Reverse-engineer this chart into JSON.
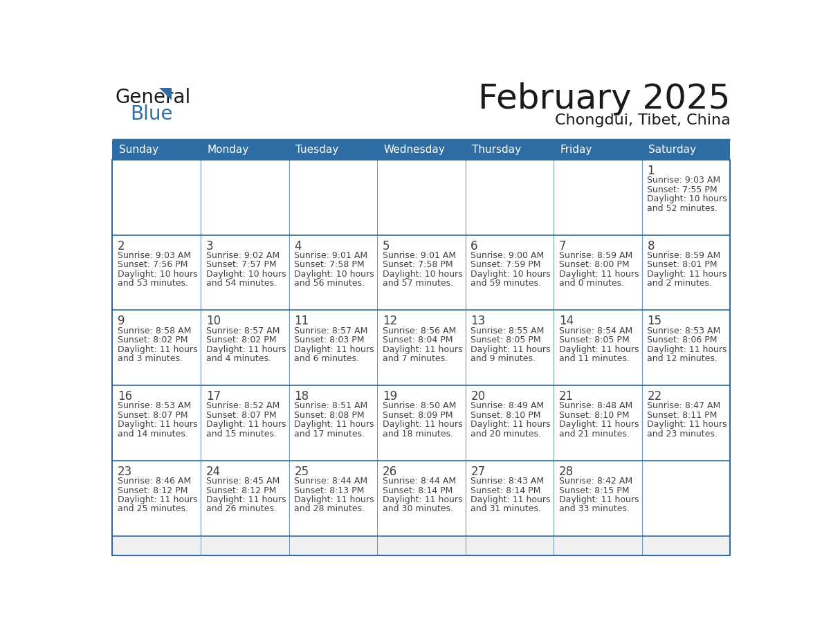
{
  "title": "February 2025",
  "subtitle": "Chongdui, Tibet, China",
  "header_bg": "#2E6DA4",
  "header_text_color": "#FFFFFF",
  "cell_bg": "#FFFFFF",
  "border_color": "#2E6DA4",
  "text_color": "#404040",
  "day_headers": [
    "Sunday",
    "Monday",
    "Tuesday",
    "Wednesday",
    "Thursday",
    "Friday",
    "Saturday"
  ],
  "days": [
    {
      "day": 1,
      "col": 6,
      "row": 0,
      "sunrise": "9:03 AM",
      "sunset": "7:55 PM",
      "daylight_line1": "Daylight: 10 hours",
      "daylight_line2": "and 52 minutes."
    },
    {
      "day": 2,
      "col": 0,
      "row": 1,
      "sunrise": "9:03 AM",
      "sunset": "7:56 PM",
      "daylight_line1": "Daylight: 10 hours",
      "daylight_line2": "and 53 minutes."
    },
    {
      "day": 3,
      "col": 1,
      "row": 1,
      "sunrise": "9:02 AM",
      "sunset": "7:57 PM",
      "daylight_line1": "Daylight: 10 hours",
      "daylight_line2": "and 54 minutes."
    },
    {
      "day": 4,
      "col": 2,
      "row": 1,
      "sunrise": "9:01 AM",
      "sunset": "7:58 PM",
      "daylight_line1": "Daylight: 10 hours",
      "daylight_line2": "and 56 minutes."
    },
    {
      "day": 5,
      "col": 3,
      "row": 1,
      "sunrise": "9:01 AM",
      "sunset": "7:58 PM",
      "daylight_line1": "Daylight: 10 hours",
      "daylight_line2": "and 57 minutes."
    },
    {
      "day": 6,
      "col": 4,
      "row": 1,
      "sunrise": "9:00 AM",
      "sunset": "7:59 PM",
      "daylight_line1": "Daylight: 10 hours",
      "daylight_line2": "and 59 minutes."
    },
    {
      "day": 7,
      "col": 5,
      "row": 1,
      "sunrise": "8:59 AM",
      "sunset": "8:00 PM",
      "daylight_line1": "Daylight: 11 hours",
      "daylight_line2": "and 0 minutes."
    },
    {
      "day": 8,
      "col": 6,
      "row": 1,
      "sunrise": "8:59 AM",
      "sunset": "8:01 PM",
      "daylight_line1": "Daylight: 11 hours",
      "daylight_line2": "and 2 minutes."
    },
    {
      "day": 9,
      "col": 0,
      "row": 2,
      "sunrise": "8:58 AM",
      "sunset": "8:02 PM",
      "daylight_line1": "Daylight: 11 hours",
      "daylight_line2": "and 3 minutes."
    },
    {
      "day": 10,
      "col": 1,
      "row": 2,
      "sunrise": "8:57 AM",
      "sunset": "8:02 PM",
      "daylight_line1": "Daylight: 11 hours",
      "daylight_line2": "and 4 minutes."
    },
    {
      "day": 11,
      "col": 2,
      "row": 2,
      "sunrise": "8:57 AM",
      "sunset": "8:03 PM",
      "daylight_line1": "Daylight: 11 hours",
      "daylight_line2": "and 6 minutes."
    },
    {
      "day": 12,
      "col": 3,
      "row": 2,
      "sunrise": "8:56 AM",
      "sunset": "8:04 PM",
      "daylight_line1": "Daylight: 11 hours",
      "daylight_line2": "and 7 minutes."
    },
    {
      "day": 13,
      "col": 4,
      "row": 2,
      "sunrise": "8:55 AM",
      "sunset": "8:05 PM",
      "daylight_line1": "Daylight: 11 hours",
      "daylight_line2": "and 9 minutes."
    },
    {
      "day": 14,
      "col": 5,
      "row": 2,
      "sunrise": "8:54 AM",
      "sunset": "8:05 PM",
      "daylight_line1": "Daylight: 11 hours",
      "daylight_line2": "and 11 minutes."
    },
    {
      "day": 15,
      "col": 6,
      "row": 2,
      "sunrise": "8:53 AM",
      "sunset": "8:06 PM",
      "daylight_line1": "Daylight: 11 hours",
      "daylight_line2": "and 12 minutes."
    },
    {
      "day": 16,
      "col": 0,
      "row": 3,
      "sunrise": "8:53 AM",
      "sunset": "8:07 PM",
      "daylight_line1": "Daylight: 11 hours",
      "daylight_line2": "and 14 minutes."
    },
    {
      "day": 17,
      "col": 1,
      "row": 3,
      "sunrise": "8:52 AM",
      "sunset": "8:07 PM",
      "daylight_line1": "Daylight: 11 hours",
      "daylight_line2": "and 15 minutes."
    },
    {
      "day": 18,
      "col": 2,
      "row": 3,
      "sunrise": "8:51 AM",
      "sunset": "8:08 PM",
      "daylight_line1": "Daylight: 11 hours",
      "daylight_line2": "and 17 minutes."
    },
    {
      "day": 19,
      "col": 3,
      "row": 3,
      "sunrise": "8:50 AM",
      "sunset": "8:09 PM",
      "daylight_line1": "Daylight: 11 hours",
      "daylight_line2": "and 18 minutes."
    },
    {
      "day": 20,
      "col": 4,
      "row": 3,
      "sunrise": "8:49 AM",
      "sunset": "8:10 PM",
      "daylight_line1": "Daylight: 11 hours",
      "daylight_line2": "and 20 minutes."
    },
    {
      "day": 21,
      "col": 5,
      "row": 3,
      "sunrise": "8:48 AM",
      "sunset": "8:10 PM",
      "daylight_line1": "Daylight: 11 hours",
      "daylight_line2": "and 21 minutes."
    },
    {
      "day": 22,
      "col": 6,
      "row": 3,
      "sunrise": "8:47 AM",
      "sunset": "8:11 PM",
      "daylight_line1": "Daylight: 11 hours",
      "daylight_line2": "and 23 minutes."
    },
    {
      "day": 23,
      "col": 0,
      "row": 4,
      "sunrise": "8:46 AM",
      "sunset": "8:12 PM",
      "daylight_line1": "Daylight: 11 hours",
      "daylight_line2": "and 25 minutes."
    },
    {
      "day": 24,
      "col": 1,
      "row": 4,
      "sunrise": "8:45 AM",
      "sunset": "8:12 PM",
      "daylight_line1": "Daylight: 11 hours",
      "daylight_line2": "and 26 minutes."
    },
    {
      "day": 25,
      "col": 2,
      "row": 4,
      "sunrise": "8:44 AM",
      "sunset": "8:13 PM",
      "daylight_line1": "Daylight: 11 hours",
      "daylight_line2": "and 28 minutes."
    },
    {
      "day": 26,
      "col": 3,
      "row": 4,
      "sunrise": "8:44 AM",
      "sunset": "8:14 PM",
      "daylight_line1": "Daylight: 11 hours",
      "daylight_line2": "and 30 minutes."
    },
    {
      "day": 27,
      "col": 4,
      "row": 4,
      "sunrise": "8:43 AM",
      "sunset": "8:14 PM",
      "daylight_line1": "Daylight: 11 hours",
      "daylight_line2": "and 31 minutes."
    },
    {
      "day": 28,
      "col": 5,
      "row": 4,
      "sunrise": "8:42 AM",
      "sunset": "8:15 PM",
      "daylight_line1": "Daylight: 11 hours",
      "daylight_line2": "and 33 minutes."
    }
  ],
  "num_rows": 5,
  "num_cols": 7,
  "fig_width": 11.88,
  "fig_height": 9.18,
  "title_fontsize": 36,
  "subtitle_fontsize": 16,
  "header_fontsize": 11,
  "day_num_fontsize": 12,
  "cell_text_fontsize": 9
}
